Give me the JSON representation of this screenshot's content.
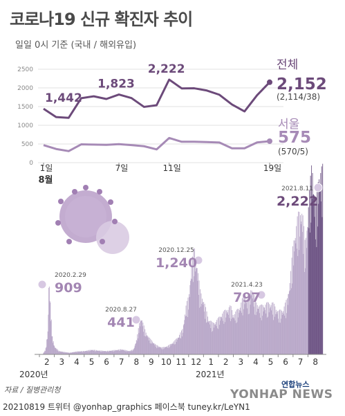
{
  "title": "코로나19 신규 확진자 추이",
  "subtitle": "일일 0시 기준 (국내 / 해외유입)",
  "colors": {
    "total": "#6c4a7a",
    "seoul": "#a68ab6",
    "bars": "#b9a8c9",
    "accent_bar": "#6e5585",
    "callout": "#a386b3"
  },
  "chart_data": [
    {
      "type": "line",
      "x": [
        "8/1",
        "8/2",
        "8/3",
        "8/4",
        "8/5",
        "8/6",
        "8/7",
        "8/8",
        "8/9",
        "8/10",
        "8/11",
        "8/12",
        "8/13",
        "8/14",
        "8/15",
        "8/16",
        "8/17",
        "8/18",
        "8/19"
      ],
      "x_tick_labels": [
        "1일",
        "7일",
        "11일",
        "19일"
      ],
      "month_label": "8월",
      "yticks": [
        "0",
        "500",
        "1000",
        "1500",
        "2000",
        "2500"
      ],
      "ylim": [
        0,
        2500
      ],
      "series": [
        {
          "name": "전체",
          "values": [
            1442,
            1219,
            1200,
            1725,
            1776,
            1704,
            1823,
            1728,
            1492,
            1537,
            2222,
            1987,
            1990,
            1930,
            1817,
            1556,
            1372,
            1805,
            2152
          ],
          "point_labels": [
            {
              "index": 0,
              "text": "1,442"
            },
            {
              "index": 6,
              "text": "1,823"
            },
            {
              "index": 10,
              "text": "2,222"
            }
          ],
          "end_value": "2,152",
          "end_detail": "(2,114/38)"
        },
        {
          "name": "서울",
          "values": [
            469,
            366,
            309,
            490,
            484,
            476,
            495,
            470,
            440,
            355,
            660,
            560,
            560,
            550,
            540,
            384,
            384,
            542,
            575
          ],
          "end_value": "575",
          "end_detail": "(570/5)"
        }
      ]
    },
    {
      "type": "bar",
      "x_tick_labels": [
        "2",
        "3",
        "4",
        "5",
        "6",
        "7",
        "8",
        "9",
        "10",
        "11",
        "12",
        "1",
        "2",
        "3",
        "4",
        "5",
        "6",
        "7",
        "8"
      ],
      "year_labels": [
        "2020년",
        "2021년"
      ],
      "annotations": [
        {
          "date": "2020.2.29",
          "value": "909"
        },
        {
          "date": "2020.8.27",
          "value": "441"
        },
        {
          "date": "2020.12.25",
          "value": "1,240"
        },
        {
          "date": "2021.4.23",
          "value": "797"
        },
        {
          "date": "2021.8.11",
          "value": "2,222"
        }
      ],
      "shape": [
        [
          0,
          0
        ],
        [
          0.2,
          2
        ],
        [
          0.4,
          60
        ],
        [
          0.55,
          280
        ],
        [
          0.62,
          909
        ],
        [
          0.75,
          480
        ],
        [
          0.85,
          200
        ],
        [
          1.0,
          90
        ],
        [
          1.3,
          40
        ],
        [
          1.6,
          30
        ],
        [
          2.0,
          20
        ],
        [
          2.5,
          35
        ],
        [
          3.0,
          40
        ],
        [
          3.5,
          55
        ],
        [
          4.0,
          45
        ],
        [
          4.5,
          40
        ],
        [
          5.0,
          50
        ],
        [
          5.5,
          60
        ],
        [
          6.0,
          40
        ],
        [
          6.3,
          60
        ],
        [
          6.5,
          180
        ],
        [
          6.7,
          380
        ],
        [
          6.8,
          441
        ],
        [
          6.9,
          380
        ],
        [
          7.1,
          260
        ],
        [
          7.4,
          180
        ],
        [
          7.8,
          110
        ],
        [
          8.2,
          80
        ],
        [
          8.6,
          100
        ],
        [
          9.0,
          150
        ],
        [
          9.3,
          210
        ],
        [
          9.6,
          300
        ],
        [
          9.8,
          560
        ],
        [
          10.0,
          680
        ],
        [
          10.15,
          1000
        ],
        [
          10.35,
          1240
        ],
        [
          10.55,
          1050
        ],
        [
          10.75,
          740
        ],
        [
          11.0,
          620
        ],
        [
          11.3,
          420
        ],
        [
          11.6,
          360
        ],
        [
          11.9,
          400
        ],
        [
          12.2,
          470
        ],
        [
          12.5,
          520
        ],
        [
          12.8,
          560
        ],
        [
          13.0,
          460
        ],
        [
          13.4,
          550
        ],
        [
          13.7,
          700
        ],
        [
          14.0,
          620
        ],
        [
          14.2,
          797
        ],
        [
          14.5,
          600
        ],
        [
          14.8,
          560
        ],
        [
          15.2,
          590
        ],
        [
          15.6,
          600
        ],
        [
          16.0,
          500
        ],
        [
          16.3,
          520
        ],
        [
          16.6,
          650
        ],
        [
          16.8,
          900
        ],
        [
          17.0,
          1300
        ],
        [
          17.3,
          1600
        ],
        [
          17.6,
          1700
        ],
        [
          17.8,
          1250
        ],
        [
          18.0,
          1700
        ],
        [
          18.25,
          2222
        ],
        [
          18.5,
          1700
        ],
        [
          18.75,
          2152
        ]
      ],
      "highlight_from_index": 18,
      "ylim": [
        0,
        2222
      ]
    }
  ],
  "source": "자료 / 질병관리청",
  "footer": "20210819 트위터 @yonhap_graphics  페이스북 tuney.kr/LeYN1",
  "logo_text": "연합뉴스",
  "watermark": "YONHAP NEWS"
}
